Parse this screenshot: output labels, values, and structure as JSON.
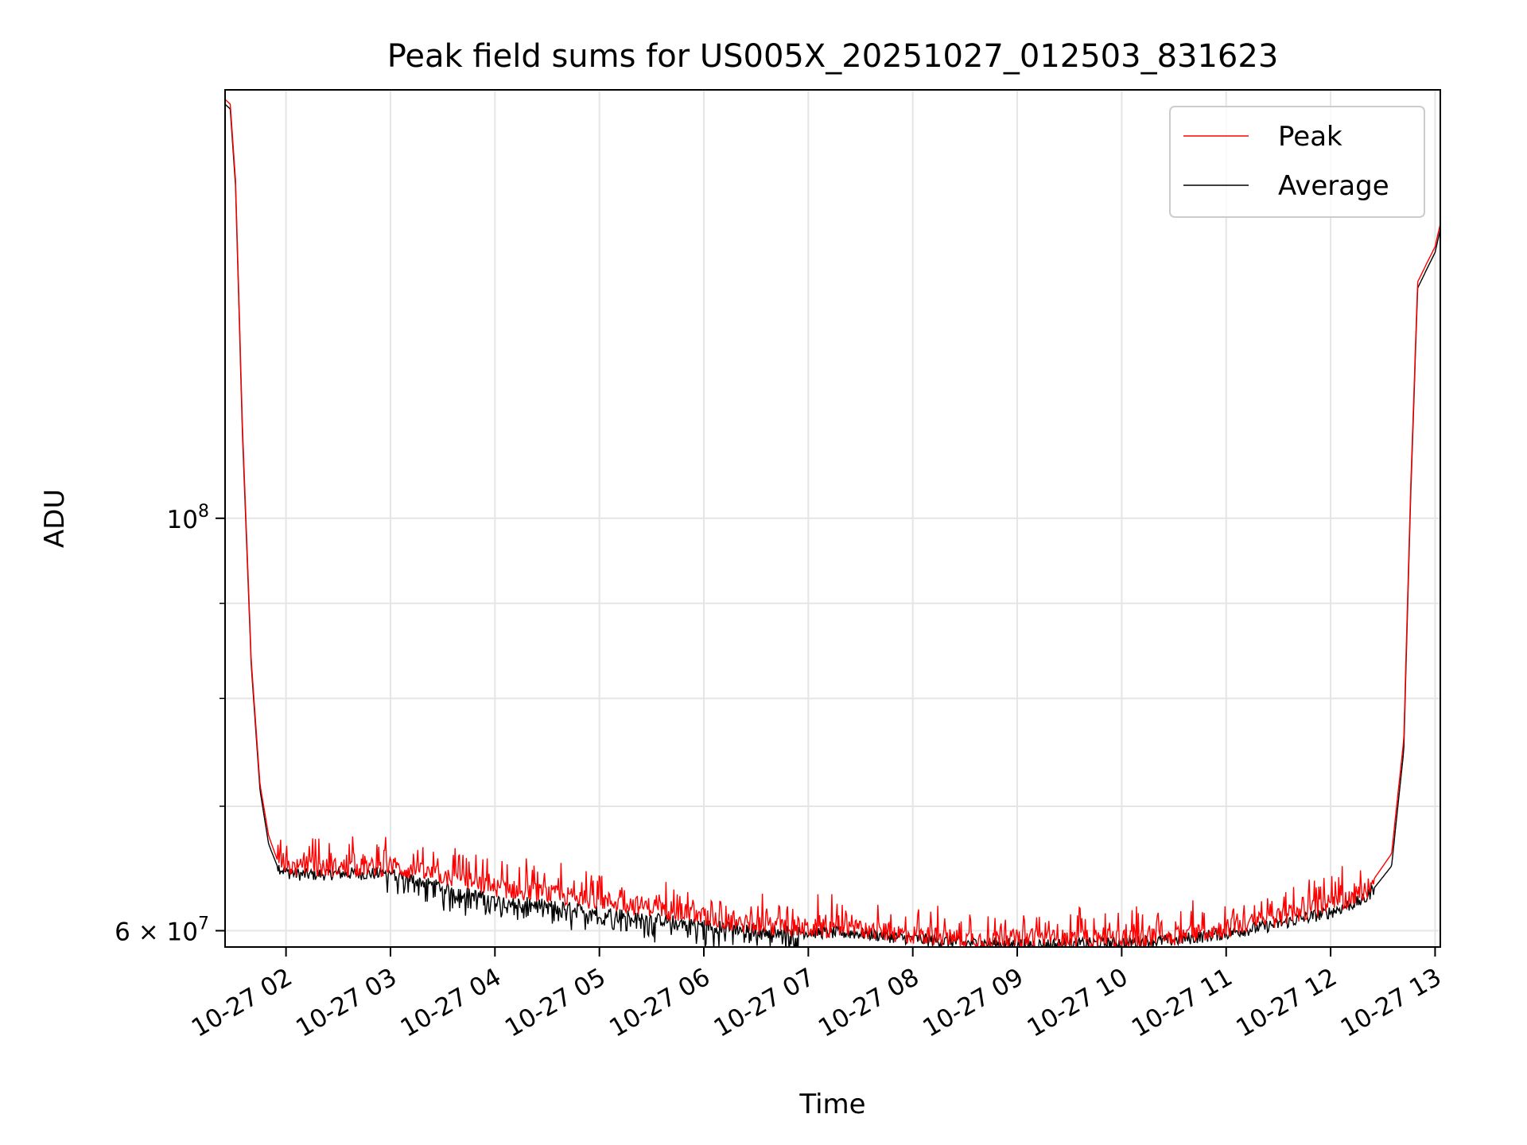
{
  "chart_data": {
    "type": "line",
    "title": "Peak field sums for US005X_20251027_012503_831623",
    "xlabel": "Time",
    "ylabel": "ADU",
    "yscale": "log",
    "grid": true,
    "legend_position": "top-right",
    "xlim": [
      "2025-10-27 01:25",
      "2025-10-27 13:03"
    ],
    "ylim": [
      58800000,
      170000000
    ],
    "x_ticks": [
      "10-27 02",
      "10-27 03",
      "10-27 04",
      "10-27 05",
      "10-27 06",
      "10-27 07",
      "10-27 08",
      "10-27 09",
      "10-27 10",
      "10-27 11",
      "10-27 12",
      "10-27 13"
    ],
    "y_ticks": [
      {
        "value": 60000000,
        "mantissa": "6",
        "times": "×",
        "base": "10",
        "exponent": "7"
      },
      {
        "value": 100000000,
        "mantissa": "",
        "times": "",
        "base": "10",
        "exponent": "8"
      }
    ],
    "y_minor_ticks": [
      70000000,
      80000000,
      90000000
    ],
    "x": [
      "2025-10-27 01:25",
      "2025-10-27 01:28",
      "2025-10-27 01:31",
      "2025-10-27 01:35",
      "2025-10-27 01:40",
      "2025-10-27 01:45",
      "2025-10-27 01:50",
      "2025-10-27 01:55",
      "2025-10-27 02:00",
      "2025-10-27 02:10",
      "2025-10-27 02:30",
      "2025-10-27 03:00",
      "2025-10-27 03:30",
      "2025-10-27 04:00",
      "2025-10-27 04:30",
      "2025-10-27 05:00",
      "2025-10-27 05:30",
      "2025-10-27 06:00",
      "2025-10-27 06:30",
      "2025-10-27 07:00",
      "2025-10-27 07:30",
      "2025-10-27 08:00",
      "2025-10-27 08:30",
      "2025-10-27 09:00",
      "2025-10-27 09:30",
      "2025-10-27 10:00",
      "2025-10-27 10:30",
      "2025-10-27 11:00",
      "2025-10-27 11:30",
      "2025-10-27 12:00",
      "2025-10-27 12:20",
      "2025-10-27 12:35",
      "2025-10-27 12:42",
      "2025-10-27 12:46",
      "2025-10-27 12:50",
      "2025-10-27 12:55",
      "2025-10-27 13:00",
      "2025-10-27 13:03"
    ],
    "series": [
      {
        "name": "Peak",
        "color": "#ff0000",
        "values": [
          168000000,
          167000000,
          152000000,
          112000000,
          84000000,
          72000000,
          67500000,
          65500000,
          65000000,
          64800000,
          64900000,
          64900000,
          64200000,
          63300000,
          62800000,
          62300000,
          61800000,
          61000000,
          60400000,
          60200000,
          60100000,
          59700000,
          59400000,
          59400000,
          59400000,
          59400000,
          59600000,
          60200000,
          61000000,
          61900000,
          63000000,
          66000000,
          76000000,
          104000000,
          134000000,
          137000000,
          140000000,
          144000000
        ]
      },
      {
        "name": "Average",
        "color": "#000000",
        "values": [
          167000000,
          166000000,
          151000000,
          111000000,
          83500000,
          71500000,
          66800000,
          65000000,
          64500000,
          64300000,
          64400000,
          64400000,
          63300000,
          62300000,
          61900000,
          61400000,
          60900000,
          60400000,
          60000000,
          59900000,
          59800000,
          59400000,
          59100000,
          59000000,
          59000000,
          59100000,
          59300000,
          59800000,
          60500000,
          61400000,
          62400000,
          65000000,
          75000000,
          103000000,
          133000000,
          136000000,
          139000000,
          143000000
        ]
      }
    ]
  }
}
